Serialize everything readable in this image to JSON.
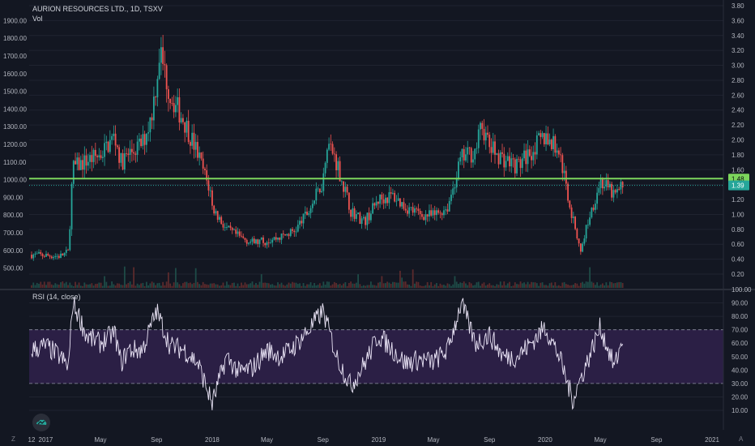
{
  "header": {
    "symbol_line": "AURION RESOURCES LTD., 1D, TSXV",
    "volume_label": "Vol"
  },
  "rsi_panel": {
    "title": "RSI (14, close)"
  },
  "corner": {
    "left": "Z",
    "right": "A"
  },
  "colors": {
    "up": "#26a69a",
    "down": "#ef5350",
    "line": "#7dd65c",
    "rsi_line": "#e9e3f5",
    "rsi_band": "#2b1f45",
    "background": "#131722",
    "vol_up": "#1e4b47",
    "vol_down": "#5b2a2c"
  },
  "icons": {
    "logo": "tradingview-cloud-icon"
  },
  "chart_data": [
    {
      "type": "candlestick",
      "title": "AURION RESOURCES LTD., 1D, TSXV",
      "left_axis_ticks": [
        "1900.00",
        "1800.00",
        "1700.00",
        "1600.00",
        "1500.00",
        "1400.00",
        "1300.00",
        "1200.00",
        "1100.00",
        "1000.00",
        "900.00",
        "800.00",
        "700.00",
        "600.00",
        "500.00"
      ],
      "right_axis_ticks": [
        "3.80",
        "3.60",
        "3.40",
        "3.20",
        "3.00",
        "2.80",
        "2.60",
        "2.40",
        "2.20",
        "2.00",
        "1.80",
        "1.60",
        "1.40",
        "1.20",
        "1.00",
        "0.80",
        "0.60",
        "0.40",
        "0.20"
      ],
      "x_ticks": [
        "12",
        "2017",
        "May",
        "Sep",
        "2018",
        "May",
        "Sep",
        "2019",
        "May",
        "Sep",
        "2020",
        "May",
        "Sep",
        "2021"
      ],
      "ylim": [
        0.0,
        3.8
      ],
      "price_path": [
        [
          "2016-12-01",
          0.46
        ],
        [
          "2017-01-01",
          0.45
        ],
        [
          "2017-02-01",
          0.44
        ],
        [
          "2017-02-20",
          0.5
        ],
        [
          "2017-03-01",
          1.62
        ],
        [
          "2017-04-01",
          1.72
        ],
        [
          "2017-05-01",
          1.8
        ],
        [
          "2017-06-01",
          2.05
        ],
        [
          "2017-06-15",
          1.7
        ],
        [
          "2017-07-01",
          1.8
        ],
        [
          "2017-08-01",
          1.95
        ],
        [
          "2017-08-20",
          2.3
        ],
        [
          "2017-09-01",
          2.8
        ],
        [
          "2017-09-08",
          3.2
        ],
        [
          "2017-10-01",
          2.6
        ],
        [
          "2017-11-01",
          2.25
        ],
        [
          "2017-12-01",
          1.8
        ],
        [
          "2017-12-28",
          1.3
        ],
        [
          "2018-01-01",
          1.1
        ],
        [
          "2018-02-01",
          0.8
        ],
        [
          "2018-03-01",
          0.7
        ],
        [
          "2018-04-01",
          0.62
        ],
        [
          "2018-05-01",
          0.65
        ],
        [
          "2018-06-01",
          0.7
        ],
        [
          "2018-07-01",
          0.78
        ],
        [
          "2018-08-01",
          1.05
        ],
        [
          "2018-09-01",
          1.45
        ],
        [
          "2018-09-10",
          2.0
        ],
        [
          "2018-10-01",
          1.7
        ],
        [
          "2018-11-01",
          1.05
        ],
        [
          "2018-12-01",
          0.9
        ],
        [
          "2019-01-01",
          1.2
        ],
        [
          "2019-02-01",
          1.25
        ],
        [
          "2019-03-01",
          1.1
        ],
        [
          "2019-04-01",
          1.0
        ],
        [
          "2019-05-01",
          0.98
        ],
        [
          "2019-06-01",
          1.1
        ],
        [
          "2019-07-01",
          1.75
        ],
        [
          "2019-08-01",
          1.85
        ],
        [
          "2019-08-15",
          2.2
        ],
        [
          "2019-09-01",
          1.9
        ],
        [
          "2019-10-01",
          1.75
        ],
        [
          "2019-11-01",
          1.65
        ],
        [
          "2019-12-01",
          1.85
        ],
        [
          "2020-01-01",
          2.05
        ],
        [
          "2020-02-01",
          1.85
        ],
        [
          "2020-02-20",
          1.25
        ],
        [
          "2020-03-01",
          0.95
        ],
        [
          "2020-03-20",
          0.5
        ],
        [
          "2020-04-01",
          0.85
        ],
        [
          "2020-05-01",
          1.45
        ],
        [
          "2020-06-01",
          1.25
        ],
        [
          "2020-06-20",
          1.39
        ]
      ],
      "last_price": "1.39",
      "horizontal_line": {
        "label": "1.48",
        "value": 1.48,
        "left_axis_value": 1040
      },
      "volume_series_name": "Vol"
    },
    {
      "type": "line",
      "title": "RSI (14, close)",
      "y_ticks": [
        "100.00",
        "90.00",
        "80.00",
        "70.00",
        "60.00",
        "50.00",
        "40.00",
        "30.00",
        "20.00",
        "10.00"
      ],
      "ylim": [
        0,
        100
      ],
      "bands": {
        "upper": 70,
        "lower": 30
      },
      "rsi_path": [
        [
          "2016-12-01",
          55
        ],
        [
          "2017-01-01",
          58
        ],
        [
          "2017-02-01",
          50
        ],
        [
          "2017-02-20",
          42
        ],
        [
          "2017-03-01",
          90
        ],
        [
          "2017-03-15",
          80
        ],
        [
          "2017-04-01",
          65
        ],
        [
          "2017-05-01",
          60
        ],
        [
          "2017-06-01",
          68
        ],
        [
          "2017-06-15",
          45
        ],
        [
          "2017-07-01",
          55
        ],
        [
          "2017-08-01",
          55
        ],
        [
          "2017-09-01",
          84
        ],
        [
          "2017-10-01",
          58
        ],
        [
          "2017-11-01",
          55
        ],
        [
          "2017-12-01",
          45
        ],
        [
          "2018-01-01",
          15
        ],
        [
          "2018-02-01",
          50
        ],
        [
          "2018-03-01",
          38
        ],
        [
          "2018-04-01",
          42
        ],
        [
          "2018-05-01",
          55
        ],
        [
          "2018-06-01",
          50
        ],
        [
          "2018-07-01",
          58
        ],
        [
          "2018-08-01",
          70
        ],
        [
          "2018-09-01",
          84
        ],
        [
          "2018-10-01",
          50
        ],
        [
          "2018-11-01",
          28
        ],
        [
          "2018-12-01",
          45
        ],
        [
          "2019-01-01",
          66
        ],
        [
          "2019-02-01",
          55
        ],
        [
          "2019-03-01",
          45
        ],
        [
          "2019-04-01",
          48
        ],
        [
          "2019-05-01",
          46
        ],
        [
          "2019-06-01",
          55
        ],
        [
          "2019-07-01",
          90
        ],
        [
          "2019-08-01",
          60
        ],
        [
          "2019-09-01",
          66
        ],
        [
          "2019-10-01",
          50
        ],
        [
          "2019-11-01",
          50
        ],
        [
          "2019-12-01",
          60
        ],
        [
          "2020-01-01",
          72
        ],
        [
          "2020-02-01",
          50
        ],
        [
          "2020-03-01",
          18
        ],
        [
          "2020-04-01",
          45
        ],
        [
          "2020-05-01",
          72
        ],
        [
          "2020-06-01",
          42
        ],
        [
          "2020-06-20",
          65
        ]
      ]
    }
  ]
}
